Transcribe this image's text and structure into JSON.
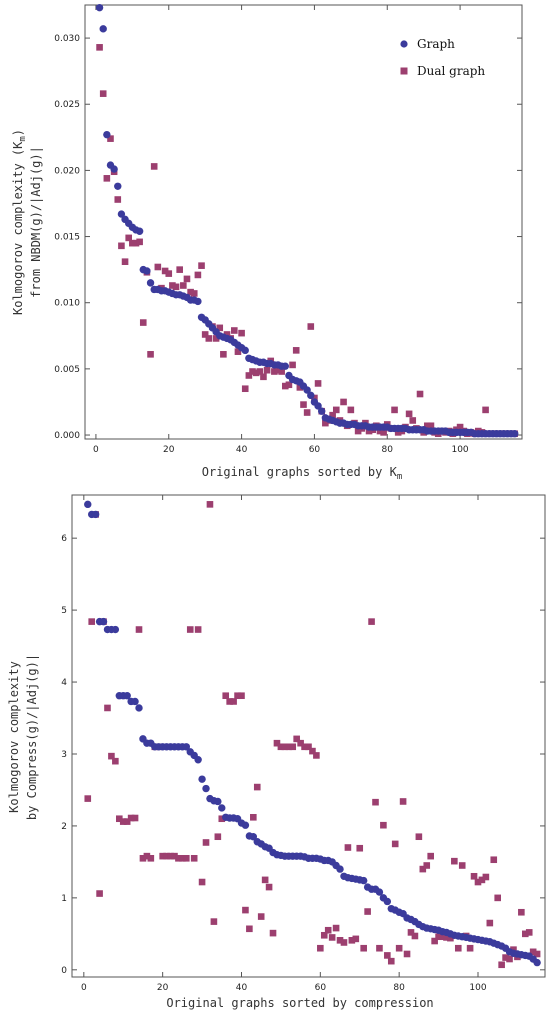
{
  "colors": {
    "graph": "#3b3b9c",
    "dual": "#9c3f6f",
    "frame": "#555555"
  },
  "chart_data": [
    {
      "type": "scatter",
      "xlabel": "Original graphs sorted by K",
      "xlabel_sub": "m",
      "ylabel_line1": "Kolmogorov complexity (K",
      "ylabel_line1_sub": "m",
      "ylabel_line1_end": ")",
      "ylabel_line2": "from NBDM(g)/|Adj(g)|",
      "xlim": [
        -3,
        117
      ],
      "ylim": [
        -0.0003,
        0.0325
      ],
      "xticks": [
        0,
        20,
        40,
        60,
        80,
        100
      ],
      "yticks": [
        0.0,
        0.005,
        0.01,
        0.015,
        0.02,
        0.025,
        0.03
      ],
      "ytick_labels": [
        "0.000",
        "0.005",
        "0.010",
        "0.015",
        "0.020",
        "0.025",
        "0.030"
      ],
      "legend_position": "top-right",
      "series": [
        {
          "name": "Graph",
          "marker": "circle",
          "y": [
            0.0323,
            0.0307,
            0.0227,
            0.0204,
            0.0201,
            0.0188,
            0.0167,
            0.0163,
            0.016,
            0.0157,
            0.0155,
            0.0154,
            0.0125,
            0.0124,
            0.0115,
            0.011,
            0.011,
            0.0109,
            0.0109,
            0.0108,
            0.0107,
            0.0106,
            0.0106,
            0.0105,
            0.0104,
            0.0102,
            0.0102,
            0.0101,
            0.0089,
            0.0087,
            0.0084,
            0.0081,
            0.0078,
            0.0075,
            0.0074,
            0.0073,
            0.0072,
            0.007,
            0.0068,
            0.0066,
            0.0064,
            0.0058,
            0.0057,
            0.0056,
            0.0055,
            0.0055,
            0.0054,
            0.0054,
            0.0053,
            0.0053,
            0.0052,
            0.0052,
            0.0045,
            0.0042,
            0.0041,
            0.004,
            0.0037,
            0.0034,
            0.003,
            0.0025,
            0.0022,
            0.0018,
            0.0013,
            0.0012,
            0.0011,
            0.001,
            0.0009,
            0.0009,
            0.0008,
            0.0008,
            0.0008,
            0.0007,
            0.0007,
            0.0007,
            0.0006,
            0.0006,
            0.0006,
            0.0006,
            0.0006,
            0.0006,
            0.0005,
            0.0005,
            0.0005,
            0.0005,
            0.0005,
            0.0004,
            0.0004,
            0.0004,
            0.0004,
            0.0004,
            0.0003,
            0.0003,
            0.0003,
            0.0003,
            0.0003,
            0.0003,
            0.0002,
            0.0002,
            0.0002,
            0.0002,
            0.0002,
            0.0002,
            0.0002,
            0.0001,
            0.0001,
            0.0001,
            0.0001,
            0.0001,
            0.0001,
            0.0001,
            0.0001,
            0.0001,
            0.0001,
            0.0001,
            0.0001
          ]
        },
        {
          "name": "Dual graph",
          "marker": "square",
          "y": [
            0.0293,
            0.0258,
            0.0194,
            0.0224,
            0.0199,
            0.0178,
            0.0143,
            0.0131,
            0.0149,
            0.0145,
            0.0145,
            0.0146,
            0.0085,
            0.0123,
            0.0061,
            0.0203,
            0.0127,
            0.0111,
            0.0124,
            0.0122,
            0.0113,
            0.0112,
            0.0125,
            0.0113,
            0.0118,
            0.0108,
            0.0107,
            0.0121,
            0.0128,
            0.0076,
            0.0073,
            0.0082,
            0.0073,
            0.0081,
            0.0061,
            0.0076,
            0.0073,
            0.0079,
            0.0063,
            0.0077,
            0.0035,
            0.0045,
            0.0048,
            0.0047,
            0.0048,
            0.0044,
            0.0049,
            0.0056,
            0.0048,
            0.0049,
            0.0048,
            0.0037,
            0.0038,
            0.0053,
            0.0064,
            0.0036,
            0.0023,
            0.0017,
            0.0082,
            0.0028,
            0.0039,
            0.0018,
            0.0009,
            0.0011,
            0.0015,
            0.0019,
            0.0011,
            0.0025,
            0.0007,
            0.0019,
            0.0009,
            0.0003,
            0.0005,
            0.0009,
            0.0003,
            0.0004,
            0.0007,
            0.0003,
            0.0002,
            0.0008,
            0.0005,
            0.0019,
            0.0002,
            0.0003,
            0.0006,
            0.0016,
            0.0011,
            0.0005,
            0.0031,
            0.0002,
            0.0007,
            0.0007,
            0.0002,
            0.0001,
            0.0003,
            0.0002,
            0.0003,
            0.0001,
            0.0004,
            0.0006,
            0.0003,
            0.0001,
            0.0002,
            0.0001,
            0.0003,
            0.0002,
            0.0019,
            0.0001,
            0.0001,
            0.0001,
            0.0001,
            0.0001,
            0.0001,
            0.0001,
            0.0001
          ]
        }
      ]
    },
    {
      "type": "scatter",
      "xlabel": "Original graphs sorted by compression",
      "ylabel_line1": "Kolmogorov complexity",
      "ylabel_line2": "by Compress(g)/|Adj(g)|",
      "xlim": [
        -3,
        117
      ],
      "ylim": [
        -0.1,
        6.6
      ],
      "xticks": [
        0,
        20,
        40,
        60,
        80,
        100
      ],
      "yticks": [
        0,
        1,
        2,
        3,
        4,
        5,
        6
      ],
      "ytick_labels": [
        "0",
        "1",
        "2",
        "3",
        "4",
        "5",
        "6"
      ],
      "series": [
        {
          "name": "Graph",
          "marker": "circle",
          "y": [
            6.47,
            6.33,
            6.33,
            4.84,
            4.84,
            4.73,
            4.73,
            4.73,
            3.81,
            3.81,
            3.81,
            3.73,
            3.73,
            3.64,
            3.21,
            3.15,
            3.15,
            3.1,
            3.1,
            3.1,
            3.1,
            3.1,
            3.1,
            3.1,
            3.1,
            3.1,
            3.03,
            2.98,
            2.92,
            2.65,
            2.52,
            2.38,
            2.35,
            2.34,
            2.25,
            2.12,
            2.11,
            2.11,
            2.1,
            2.04,
            2.01,
            1.86,
            1.85,
            1.78,
            1.75,
            1.71,
            1.69,
            1.63,
            1.6,
            1.59,
            1.58,
            1.58,
            1.58,
            1.58,
            1.58,
            1.57,
            1.55,
            1.55,
            1.55,
            1.54,
            1.52,
            1.52,
            1.5,
            1.45,
            1.4,
            1.3,
            1.28,
            1.27,
            1.26,
            1.25,
            1.24,
            1.15,
            1.12,
            1.12,
            1.08,
            1.0,
            0.95,
            0.85,
            0.83,
            0.8,
            0.78,
            0.72,
            0.7,
            0.67,
            0.63,
            0.6,
            0.58,
            0.57,
            0.56,
            0.55,
            0.53,
            0.52,
            0.5,
            0.48,
            0.47,
            0.46,
            0.45,
            0.44,
            0.43,
            0.42,
            0.41,
            0.4,
            0.39,
            0.37,
            0.35,
            0.33,
            0.3,
            0.25,
            0.23,
            0.22,
            0.21,
            0.2,
            0.19,
            0.15,
            0.1
          ]
        },
        {
          "name": "Dual graph",
          "marker": "square",
          "y": [
            2.38,
            4.84,
            6.33,
            1.06,
            4.84,
            3.64,
            2.97,
            2.9,
            2.1,
            2.06,
            2.06,
            2.11,
            2.11,
            4.73,
            1.55,
            1.58,
            1.55,
            3.1,
            3.1,
            1.58,
            1.58,
            1.58,
            1.58,
            1.55,
            1.55,
            1.55,
            4.73,
            1.55,
            4.73,
            1.22,
            1.77,
            6.47,
            0.67,
            1.85,
            2.1,
            3.81,
            3.73,
            3.73,
            3.81,
            3.81,
            0.83,
            0.57,
            2.12,
            2.54,
            0.74,
            1.25,
            1.15,
            0.51,
            3.15,
            3.1,
            3.1,
            3.1,
            3.1,
            3.21,
            3.15,
            3.1,
            3.1,
            3.04,
            2.98,
            0.3,
            0.48,
            0.55,
            0.45,
            0.58,
            0.41,
            0.38,
            1.7,
            0.41,
            0.43,
            1.69,
            0.3,
            0.81,
            4.84,
            2.33,
            0.3,
            2.01,
            0.2,
            0.12,
            1.75,
            0.3,
            2.34,
            0.22,
            0.52,
            0.47,
            1.85,
            1.4,
            1.45,
            1.58,
            0.4,
            0.46,
            0.46,
            0.45,
            0.44,
            1.51,
            0.3,
            1.45,
            0.47,
            0.3,
            1.3,
            1.22,
            1.25,
            1.29,
            0.65,
            1.53,
            1.0,
            0.07,
            0.17,
            0.15,
            0.28,
            0.18,
            0.8,
            0.5,
            0.52,
            0.25,
            0.22
          ]
        }
      ]
    }
  ],
  "legend": {
    "graph": "Graph",
    "dual": "Dual graph"
  }
}
